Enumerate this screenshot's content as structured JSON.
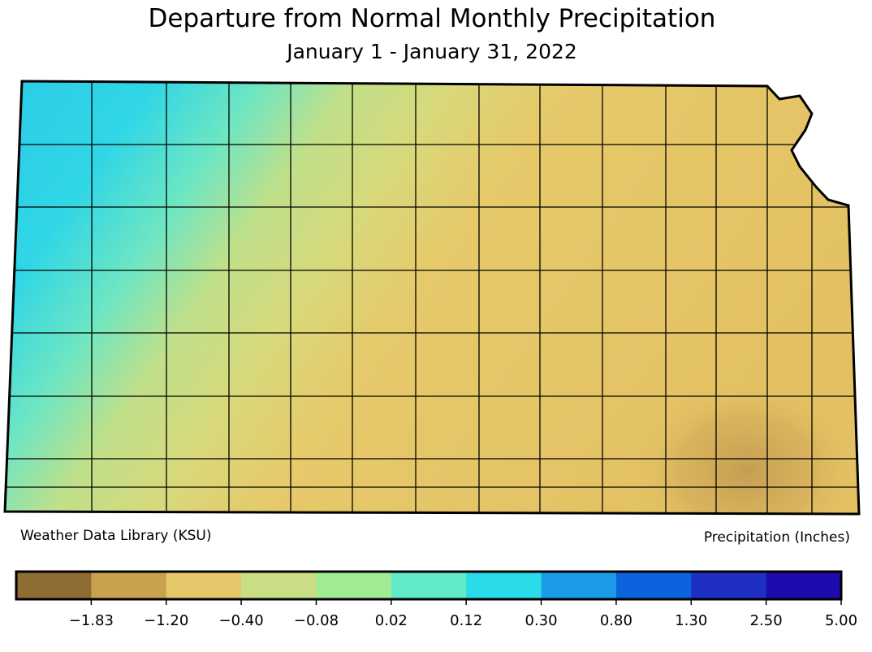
{
  "title": "Departure from Normal Monthly Precipitation",
  "subtitle": "January 1 - January 31, 2022",
  "source": "Weather Data Library (KSU)",
  "units_label": "Precipitation (Inches)",
  "colorbar": {
    "colors": [
      "#8f6c33",
      "#c8a24f",
      "#e6c86a",
      "#c9dd84",
      "#a0eb94",
      "#62ebc8",
      "#2adbe9",
      "#1a9ce8",
      "#0c63de",
      "#1f2fc4",
      "#1e0bae"
    ],
    "ticks": [
      {
        "value": -1.83,
        "label": "−1.83"
      },
      {
        "value": -1.2,
        "label": "−1.20"
      },
      {
        "value": -0.4,
        "label": "−0.40"
      },
      {
        "value": -0.08,
        "label": "−0.08"
      },
      0.02,
      0.12,
      {
        "value": 0.3,
        "label": "0.30"
      },
      {
        "value": 0.8,
        "label": "0.80"
      },
      {
        "value": 1.3,
        "label": "1.30"
      },
      {
        "value": 2.5,
        "label": "2.50"
      },
      {
        "value": 5,
        "label": "5.00"
      }
    ]
  }
}
